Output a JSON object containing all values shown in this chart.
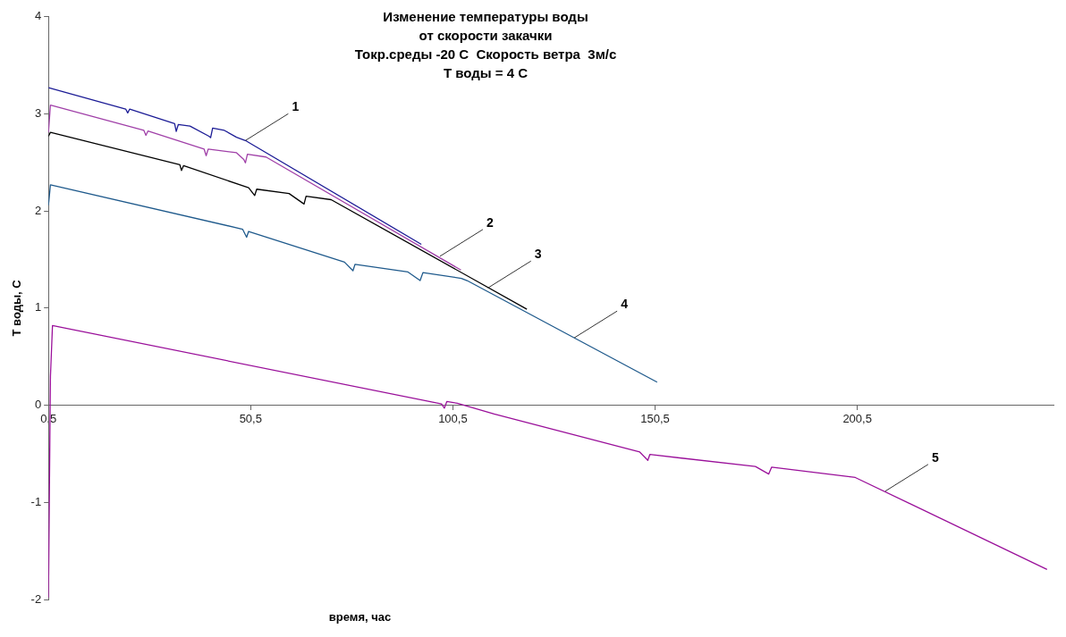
{
  "chart_data": {
    "type": "line",
    "title": "Изменение температуры воды\nот скорости закачки\nТокр.среды -20 С  Скорость ветра  3м/с\nТ воды = 4 С",
    "xlabel": "время, час",
    "ylabel": "Т воды, С",
    "xlim": [
      0.5,
      249
    ],
    "xticks": [
      {
        "value": 0.5,
        "label": "0,5"
      },
      {
        "value": 50.5,
        "label": "50,5"
      },
      {
        "value": 100.5,
        "label": "100,5"
      },
      {
        "value": 150.5,
        "label": "150,5"
      },
      {
        "value": 200.5,
        "label": "200,5"
      }
    ],
    "ylim": [
      -2,
      4
    ],
    "yticks": [
      -2,
      -1,
      0,
      1,
      2,
      3,
      4
    ],
    "grid": false,
    "legend": false,
    "line_style": "solid",
    "marker": "none",
    "series": [
      {
        "color": "#1c1c96",
        "x": [
          0.5,
          19.6,
          20.1,
          20.6,
          31.7,
          32.1,
          32.6,
          35.5,
          40.2,
          40.6,
          41.1,
          44,
          47,
          49.2,
          92.7
        ],
        "values": [
          3.27,
          3.05,
          3.01,
          3.05,
          2.9,
          2.82,
          2.89,
          2.874,
          2.77,
          2.755,
          2.853,
          2.83,
          2.76,
          2.726,
          1.657
        ]
      },
      {
        "color": "#a040a8",
        "x": [
          0.5,
          1,
          24.1,
          24.6,
          25.1,
          39,
          39.5,
          40,
          47,
          48.8,
          49.2,
          49.7,
          54.3,
          102.5
        ],
        "values": [
          2.81,
          3.09,
          2.83,
          2.78,
          2.823,
          2.637,
          2.57,
          2.638,
          2.6,
          2.53,
          2.496,
          2.585,
          2.556,
          1.392
        ]
      },
      {
        "color": "#000000",
        "x": [
          0.5,
          1,
          33,
          33.4,
          33.9,
          50,
          51.5,
          52,
          60,
          63.7,
          64.2,
          70.4,
          118.8
        ],
        "values": [
          2.77,
          2.81,
          2.476,
          2.417,
          2.467,
          2.24,
          2.16,
          2.225,
          2.18,
          2.072,
          2.152,
          2.117,
          0.989
        ]
      },
      {
        "color": "#1f5a8c",
        "x": [
          0.5,
          1,
          48.5,
          49.5,
          50,
          73.7,
          75.8,
          76.3,
          89.4,
          92.4,
          93.1,
          102.6,
          104,
          151
        ],
        "values": [
          2.06,
          2.27,
          1.813,
          1.73,
          1.79,
          1.474,
          1.386,
          1.451,
          1.372,
          1.284,
          1.366,
          1.307,
          1.284,
          0.238
        ]
      },
      {
        "color": "#9a109a",
        "x": [
          0.5,
          1,
          1.5,
          97.7,
          98.4,
          99,
          101.6,
          110.7,
          146.7,
          148.7,
          149.2,
          175.3,
          178.6,
          179.3,
          200,
          247.4
        ],
        "values": [
          -1.98,
          0.3,
          0.82,
          0.014,
          -0.03,
          0.038,
          0.02,
          -0.09,
          -0.482,
          -0.567,
          -0.507,
          -0.631,
          -0.708,
          -0.638,
          -0.744,
          -1.69
        ]
      }
    ],
    "annotations": [
      {
        "text": "1",
        "x": 49.2,
        "y": 2.726
      },
      {
        "text": "2",
        "x": 97.3,
        "y": 1.534
      },
      {
        "text": "3",
        "x": 109.2,
        "y": 1.209
      },
      {
        "text": "4",
        "x": 130.5,
        "y": 0.694
      },
      {
        "text": "5",
        "x": 207.4,
        "y": -0.885
      }
    ]
  }
}
